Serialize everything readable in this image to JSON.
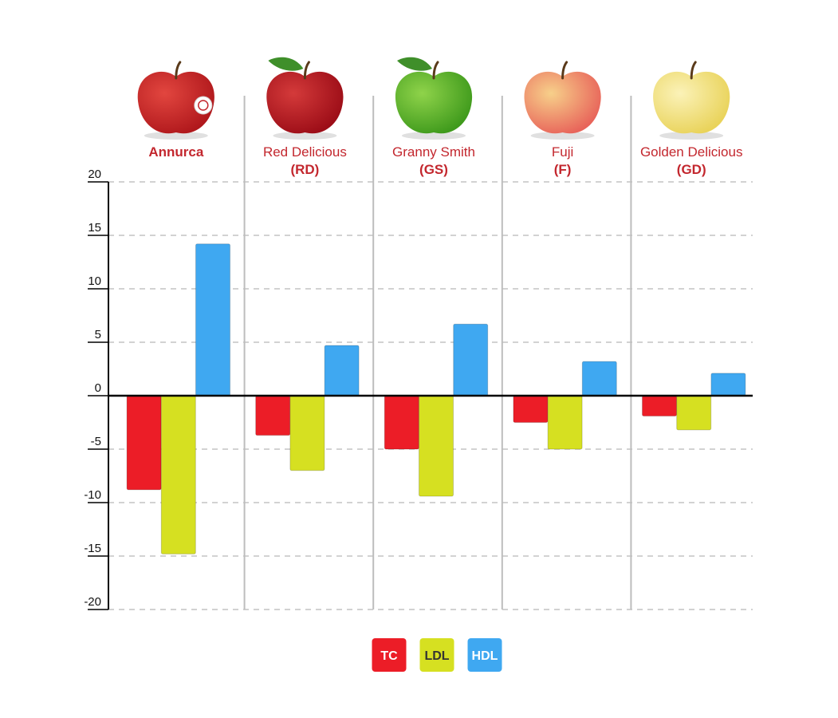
{
  "chart_data": {
    "type": "bar",
    "title": "",
    "xlabel": "",
    "ylabel": "",
    "ylim": [
      -20,
      20
    ],
    "yticks": [
      20,
      15,
      10,
      5,
      0,
      -5,
      -10,
      -15,
      -20
    ],
    "ytick_labels": [
      "20",
      "15",
      "10",
      "5",
      "0",
      "-5",
      "-10",
      "-15",
      "-20"
    ],
    "categories": [
      {
        "line1": "Annurca",
        "line2": "",
        "apple_color": "#b0181c",
        "apple_highlight": "#e2463f",
        "emphasis": true
      },
      {
        "line1": "Red Delicious",
        "line2": "(RD)",
        "apple_color": "#9c0d17",
        "apple_highlight": "#d43a3a",
        "emphasis": false
      },
      {
        "line1": "Granny Smith",
        "line2": "(GS)",
        "apple_color": "#3f9a1c",
        "apple_highlight": "#8fd34a",
        "emphasis": false
      },
      {
        "line1": "Fuji",
        "line2": "(F)",
        "apple_color": "#e8645a",
        "apple_highlight": "#f7d08a",
        "emphasis": false
      },
      {
        "line1": "Golden Delicious",
        "line2": "(GD)",
        "apple_color": "#e9d35a",
        "apple_highlight": "#fbf2b8",
        "emphasis": false
      }
    ],
    "series": [
      {
        "name": "TC",
        "color": "#ec1d27",
        "text_color": "#ffffff",
        "values": [
          -8.8,
          -3.7,
          -5,
          -2.5,
          -1.9
        ]
      },
      {
        "name": "LDL",
        "color": "#d6e021",
        "text_color": "#333333",
        "values": [
          -14.8,
          -7,
          -9.4,
          -5,
          -3.2
        ]
      },
      {
        "name": "HDL",
        "color": "#3fa8f1",
        "text_color": "#ffffff",
        "values": [
          14.2,
          4.7,
          6.7,
          3.2,
          2.1
        ]
      }
    ],
    "legend": [
      "TC",
      "LDL",
      "HDL"
    ],
    "legend_position": "bottom-center",
    "grid": true
  }
}
